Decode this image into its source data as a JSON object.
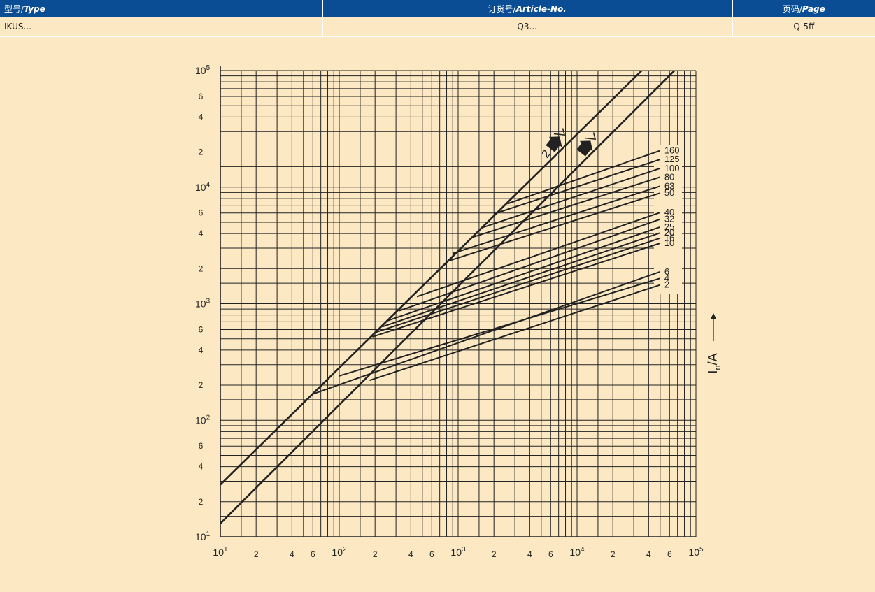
{
  "header": {
    "columns": [
      {
        "zh": "型号",
        "sep": "/",
        "en": "Type"
      },
      {
        "zh": "订货号",
        "sep": "/",
        "en": "Article-No."
      },
      {
        "zh": "页码",
        "sep": "/",
        "en": "Page"
      }
    ],
    "row": {
      "type": "IKUS...",
      "article": "Q3...",
      "page": "Q-5ff"
    }
  },
  "chart_data": {
    "type": "line",
    "x_scale": "log",
    "y_scale": "log",
    "xlim": [
      10,
      100000
    ],
    "ylim": [
      10,
      100000
    ],
    "x_tick_labels": [
      {
        "v": 10,
        "base": "10",
        "exp": "1"
      },
      {
        "v": 20,
        "text": "2"
      },
      {
        "v": 40,
        "text": "4"
      },
      {
        "v": 60,
        "text": "6"
      },
      {
        "v": 100,
        "base": "10",
        "exp": "2"
      },
      {
        "v": 200,
        "text": "2"
      },
      {
        "v": 400,
        "text": "4"
      },
      {
        "v": 600,
        "text": "6"
      },
      {
        "v": 1000,
        "base": "10",
        "exp": "3"
      },
      {
        "v": 2000,
        "text": "2"
      },
      {
        "v": 4000,
        "text": "4"
      },
      {
        "v": 6000,
        "text": "6"
      },
      {
        "v": 10000,
        "base": "10",
        "exp": "4"
      },
      {
        "v": 20000,
        "text": "2"
      },
      {
        "v": 40000,
        "text": "4"
      },
      {
        "v": 60000,
        "text": "6"
      },
      {
        "v": 100000,
        "base": "10",
        "exp": "5"
      }
    ],
    "y_tick_labels": [
      {
        "v": 10,
        "base": "10",
        "exp": "1"
      },
      {
        "v": 20,
        "text": "2"
      },
      {
        "v": 40,
        "text": "4"
      },
      {
        "v": 60,
        "text": "6"
      },
      {
        "v": 100,
        "base": "10",
        "exp": "2"
      },
      {
        "v": 200,
        "text": "2"
      },
      {
        "v": 400,
        "text": "4"
      },
      {
        "v": 600,
        "text": "6"
      },
      {
        "v": 1000,
        "base": "10",
        "exp": "3"
      },
      {
        "v": 2000,
        "text": "2"
      },
      {
        "v": 4000,
        "text": "4"
      },
      {
        "v": 6000,
        "text": "6"
      },
      {
        "v": 10000,
        "base": "10",
        "exp": "4"
      },
      {
        "v": 20000,
        "text": "2"
      },
      {
        "v": 40000,
        "text": "4"
      },
      {
        "v": 60000,
        "text": "6"
      },
      {
        "v": 100000,
        "base": "10",
        "exp": "5"
      }
    ],
    "ylabel": {
      "main": "I",
      "sub": "n",
      "rest": "/A"
    },
    "limit_lines": [
      {
        "name": "2·I²t_k",
        "points": [
          [
            10,
            28
          ],
          [
            35000,
            100000
          ]
        ]
      },
      {
        "name": "I²t_k",
        "points": [
          [
            10,
            13
          ],
          [
            66000,
            100000
          ]
        ]
      }
    ],
    "series": [
      {
        "name": "2",
        "points": [
          [
            180,
            220
          ],
          [
            50000,
            1450
          ]
        ]
      },
      {
        "name": "4",
        "points": [
          [
            100,
            240
          ],
          [
            50000,
            1650
          ]
        ]
      },
      {
        "name": "6",
        "points": [
          [
            60,
            168
          ],
          [
            50000,
            1880
          ]
        ]
      },
      {
        "name": "10",
        "points": [
          [
            190,
            520
          ],
          [
            50000,
            3300
          ]
        ]
      },
      {
        "name": "16",
        "points": [
          [
            200,
            565
          ],
          [
            50000,
            3650
          ]
        ]
      },
      {
        "name": "20",
        "points": [
          [
            230,
            635
          ],
          [
            50000,
            4050
          ]
        ]
      },
      {
        "name": "25",
        "points": [
          [
            250,
            710
          ],
          [
            50000,
            4550
          ]
        ]
      },
      {
        "name": "32",
        "points": [
          [
            320,
            870
          ],
          [
            50000,
            5300
          ]
        ]
      },
      {
        "name": "40",
        "points": [
          [
            450,
            1150
          ],
          [
            50000,
            6050
          ]
        ]
      },
      {
        "name": "50",
        "points": [
          [
            800,
            2300
          ],
          [
            50000,
            8900
          ]
        ]
      },
      {
        "name": "63",
        "points": [
          [
            900,
            2700
          ],
          [
            50000,
            10200
          ]
        ]
      },
      {
        "name": "80",
        "points": [
          [
            1300,
            3700
          ],
          [
            50000,
            12200
          ]
        ]
      },
      {
        "name": "100",
        "points": [
          [
            1600,
            4500
          ],
          [
            50000,
            14500
          ]
        ]
      },
      {
        "name": "125",
        "points": [
          [
            2000,
            5900
          ],
          [
            50000,
            17300
          ]
        ]
      },
      {
        "name": "160",
        "points": [
          [
            2600,
            7200
          ],
          [
            50000,
            20600
          ]
        ]
      }
    ],
    "grid": true,
    "colors": {
      "line": "#222222",
      "grid": "#222222",
      "header": "#0a4d94",
      "background": "#fce9c3"
    }
  }
}
